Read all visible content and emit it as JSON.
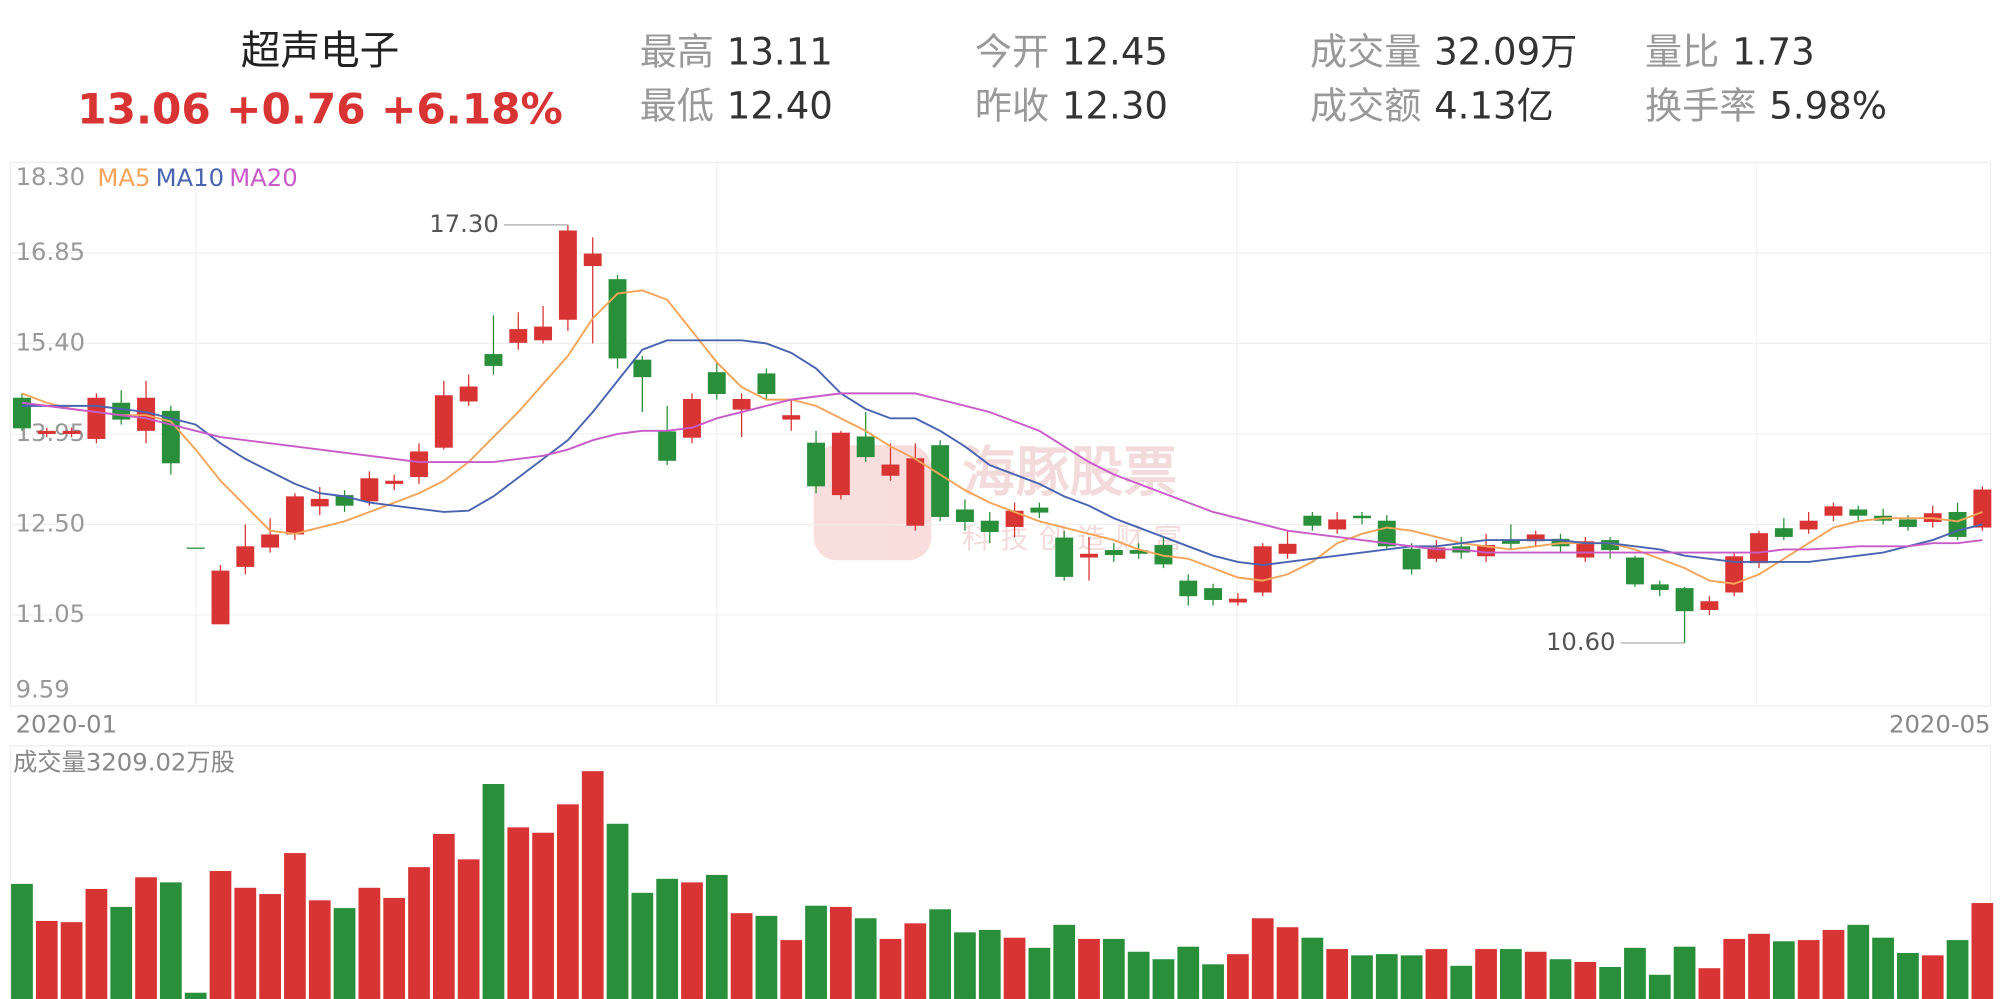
{
  "header": {
    "name": "超声电子",
    "price": "13.06",
    "change": "+0.76",
    "change_pct": "+6.18%",
    "stats": [
      {
        "label": "最高",
        "value": "13.11"
      },
      {
        "label": "最低",
        "value": "12.40"
      },
      {
        "label": "今开",
        "value": "12.45"
      },
      {
        "label": "昨收",
        "value": "12.30"
      },
      {
        "label": "成交量",
        "value": "32.09万"
      },
      {
        "label": "成交额",
        "value": "4.13亿"
      },
      {
        "label": "量比",
        "value": "1.73"
      },
      {
        "label": "换手率",
        "value": "5.98%"
      }
    ]
  },
  "watermark": {
    "title": "海豚股票",
    "subtitle": "科技创造财富"
  },
  "chart_data": {
    "type": "candlestick",
    "categories": [
      "2020-01",
      null,
      null,
      null,
      null,
      null,
      null,
      null,
      null,
      null,
      null,
      null,
      null,
      null,
      null,
      null,
      null,
      null,
      null,
      null,
      null,
      null,
      null,
      null,
      null,
      null,
      null,
      null,
      null,
      null,
      null,
      null,
      null,
      null,
      null,
      null,
      null,
      null,
      null,
      null,
      null,
      null,
      null,
      null,
      null,
      null,
      null,
      null,
      null,
      null,
      null,
      null,
      null,
      null,
      null,
      null,
      null,
      null,
      null,
      null,
      null,
      null,
      null,
      null,
      null,
      null,
      null,
      null,
      null,
      null,
      null,
      null,
      null,
      null,
      null,
      null,
      null,
      null,
      null,
      "2020-05"
    ],
    "open": [
      14.53,
      13.95,
      13.95,
      13.87,
      14.45,
      14.0,
      14.32,
      12.13,
      10.9,
      11.82,
      12.13,
      12.34,
      12.79,
      12.97,
      12.87,
      13.15,
      13.26,
      13.73,
      14.47,
      15.23,
      15.41,
      15.45,
      15.78,
      16.64,
      16.43,
      15.14,
      13.99,
      13.89,
      14.94,
      14.34,
      14.92,
      14.18,
      13.81,
      12.97,
      13.91,
      13.28,
      12.48,
      13.77,
      12.74,
      12.56,
      12.46,
      12.77,
      12.29,
      11.97,
      12.09,
      12.09,
      12.17,
      11.6,
      11.48,
      11.25,
      11.41,
      12.03,
      12.64,
      12.42,
      12.64,
      12.56,
      12.11,
      11.95,
      12.15,
      11.99,
      12.25,
      12.23,
      12.27,
      11.97,
      12.25,
      11.97,
      11.54,
      11.48,
      11.13,
      11.41,
      11.88,
      12.44,
      12.42,
      12.64,
      12.74,
      12.64,
      12.58,
      12.54,
      12.7,
      12.45
    ],
    "high": [
      14.6,
      14.05,
      14.05,
      14.6,
      14.65,
      14.8,
      14.4,
      12.13,
      11.85,
      12.5,
      12.6,
      13.0,
      13.1,
      13.05,
      13.35,
      13.3,
      13.8,
      14.8,
      14.9,
      15.85,
      15.9,
      16.0,
      17.3,
      17.1,
      16.5,
      15.2,
      14.4,
      14.6,
      15.1,
      14.6,
      15.0,
      14.5,
      14.0,
      14.0,
      14.3,
      13.8,
      13.8,
      13.85,
      12.9,
      12.7,
      12.85,
      12.85,
      12.4,
      12.3,
      12.2,
      12.2,
      12.3,
      11.7,
      11.55,
      11.4,
      12.2,
      12.4,
      12.7,
      12.7,
      12.7,
      12.65,
      12.2,
      12.25,
      12.3,
      12.35,
      12.5,
      12.4,
      12.35,
      12.3,
      12.3,
      12.0,
      11.6,
      11.5,
      11.35,
      12.05,
      12.4,
      12.6,
      12.7,
      12.85,
      12.8,
      12.75,
      12.65,
      12.8,
      12.85,
      13.11
    ],
    "low": [
      14.0,
      13.9,
      13.9,
      13.8,
      14.1,
      13.8,
      13.3,
      12.13,
      10.9,
      11.7,
      12.05,
      12.25,
      12.65,
      12.7,
      12.8,
      13.05,
      13.15,
      13.7,
      14.4,
      14.9,
      15.3,
      15.4,
      15.6,
      15.4,
      15.0,
      14.3,
      13.45,
      13.8,
      14.5,
      13.9,
      14.5,
      14.0,
      13.0,
      12.9,
      13.5,
      13.2,
      12.4,
      12.55,
      12.4,
      12.2,
      12.3,
      12.6,
      11.6,
      11.6,
      11.9,
      11.95,
      11.8,
      11.2,
      11.2,
      11.2,
      11.35,
      11.95,
      12.4,
      12.35,
      12.5,
      12.1,
      11.7,
      11.9,
      11.95,
      11.9,
      12.1,
      12.15,
      12.05,
      11.9,
      11.95,
      11.5,
      11.35,
      10.6,
      11.05,
      11.35,
      11.8,
      12.25,
      12.35,
      12.55,
      12.55,
      12.5,
      12.4,
      12.45,
      12.25,
      12.4
    ],
    "close": [
      14.04,
      14.0,
      14.0,
      14.53,
      14.18,
      14.53,
      13.48,
      12.13,
      11.76,
      12.15,
      12.34,
      12.95,
      12.91,
      12.8,
      13.24,
      13.2,
      13.67,
      14.57,
      14.71,
      15.04,
      15.63,
      15.67,
      17.21,
      16.84,
      15.16,
      14.86,
      13.52,
      14.51,
      14.59,
      14.51,
      14.59,
      14.25,
      13.11,
      13.97,
      13.58,
      13.46,
      13.56,
      12.62,
      12.54,
      12.38,
      12.72,
      12.69,
      11.66,
      12.03,
      12.01,
      12.03,
      11.86,
      11.35,
      11.29,
      11.31,
      12.15,
      12.19,
      12.48,
      12.58,
      12.6,
      12.15,
      11.78,
      12.13,
      12.05,
      12.17,
      12.19,
      12.34,
      12.15,
      12.23,
      12.09,
      11.54,
      11.45,
      11.11,
      11.27,
      11.99,
      12.36,
      12.3,
      12.56,
      12.79,
      12.64,
      12.56,
      12.46,
      12.68,
      12.3,
      13.06
    ],
    "up_color": "#d93434",
    "down_color": "#2a8f3a",
    "series": [
      {
        "name": "MA5",
        "color": "#f5a55a",
        "values": [
          14.6,
          14.45,
          14.35,
          14.3,
          14.25,
          14.25,
          14.15,
          13.7,
          13.2,
          12.8,
          12.4,
          12.35,
          12.45,
          12.55,
          12.7,
          12.85,
          13.0,
          13.2,
          13.5,
          13.9,
          14.3,
          14.75,
          15.2,
          15.8,
          16.2,
          16.25,
          16.1,
          15.6,
          15.1,
          14.7,
          14.5,
          14.5,
          14.4,
          14.2,
          14.0,
          13.75,
          13.55,
          13.3,
          13.05,
          12.85,
          12.7,
          12.55,
          12.45,
          12.35,
          12.25,
          12.1,
          12.0,
          11.95,
          11.8,
          11.65,
          11.6,
          11.7,
          11.9,
          12.2,
          12.35,
          12.45,
          12.4,
          12.3,
          12.2,
          12.15,
          12.1,
          12.15,
          12.2,
          12.2,
          12.2,
          12.1,
          11.95,
          11.8,
          11.6,
          11.55,
          11.7,
          11.95,
          12.2,
          12.45,
          12.55,
          12.6,
          12.6,
          12.6,
          12.55,
          12.7
        ]
      },
      {
        "name": "MA10",
        "color": "#4a64b0",
        "values": [
          14.4,
          14.4,
          14.4,
          14.4,
          14.35,
          14.3,
          14.2,
          14.1,
          13.8,
          13.55,
          13.35,
          13.15,
          13.0,
          12.95,
          12.85,
          12.8,
          12.75,
          12.7,
          12.72,
          12.95,
          13.25,
          13.55,
          13.85,
          14.3,
          14.8,
          15.3,
          15.45,
          15.45,
          15.45,
          15.45,
          15.4,
          15.25,
          15.0,
          14.6,
          14.35,
          14.2,
          14.2,
          14.0,
          13.75,
          13.45,
          13.3,
          13.15,
          12.95,
          12.8,
          12.6,
          12.45,
          12.3,
          12.15,
          12.0,
          11.9,
          11.85,
          11.9,
          11.95,
          12.0,
          12.05,
          12.1,
          12.15,
          12.15,
          12.2,
          12.25,
          12.25,
          12.25,
          12.25,
          12.2,
          12.2,
          12.15,
          12.1,
          12.0,
          11.95,
          11.9,
          11.9,
          11.9,
          11.9,
          11.95,
          12.0,
          12.05,
          12.15,
          12.25,
          12.4,
          12.5
        ]
      },
      {
        "name": "MA20",
        "color": "#c85bc8",
        "values": [
          14.45,
          14.4,
          14.35,
          14.3,
          14.25,
          14.2,
          14.1,
          14.0,
          13.9,
          13.85,
          13.8,
          13.75,
          13.7,
          13.65,
          13.6,
          13.55,
          13.5,
          13.5,
          13.5,
          13.5,
          13.55,
          13.6,
          13.7,
          13.85,
          13.95,
          14.0,
          14.0,
          14.05,
          14.2,
          14.3,
          14.4,
          14.5,
          14.55,
          14.6,
          14.6,
          14.6,
          14.6,
          14.5,
          14.4,
          14.3,
          14.15,
          14.0,
          13.75,
          13.5,
          13.3,
          13.15,
          13.0,
          12.85,
          12.7,
          12.6,
          12.5,
          12.4,
          12.35,
          12.3,
          12.25,
          12.2,
          12.15,
          12.1,
          12.1,
          12.05,
          12.05,
          12.05,
          12.05,
          12.05,
          12.05,
          12.05,
          12.05,
          12.05,
          12.05,
          12.05,
          12.05,
          12.1,
          12.1,
          12.12,
          12.15,
          12.15,
          12.15,
          12.2,
          12.2,
          12.25
        ]
      }
    ],
    "ylim": [
      9.59,
      18.3
    ],
    "yticks": [
      {
        "value": 9.59,
        "label": "9.59"
      },
      11.05,
      {
        "value": 12.5,
        "label": "12.50"
      },
      13.95,
      {
        "value": 15.4,
        "label": "15.40"
      },
      16.85,
      {
        "value": 18.3,
        "label": "18.30"
      }
    ],
    "grid": true,
    "annotations": [
      "17.30",
      "10.60"
    ],
    "volume_label": "成交量3209.02万股",
    "volume_ylim": [
      0,
      8470
    ],
    "volume": [
      3850,
      2610,
      2570,
      3680,
      3080,
      4070,
      3900,
      210,
      4280,
      3720,
      3510,
      4880,
      3300,
      3040,
      3720,
      3380,
      4410,
      5520,
      4670,
      7190,
      5740,
      5560,
      6510,
      7620,
      5860,
      3550,
      4020,
      3900,
      4150,
      2870,
      2780,
      1970,
      3120,
      3080,
      2700,
      2010,
      2530,
      3000,
      2230,
      2310,
      2050,
      1710,
      2480,
      2010,
      2010,
      1580,
      1330,
      1750,
      1160,
      1500,
      2700,
      2400,
      2050,
      1670,
      1460,
      1500,
      1460,
      1670,
      1110,
      1670,
      1670,
      1580,
      1330,
      1240,
      1070,
      1710,
      810,
      1750,
      1030,
      2010,
      2180,
      1930,
      1970,
      2310,
      2480,
      2050,
      1540,
      1460,
      1970,
      3209.02
    ]
  }
}
